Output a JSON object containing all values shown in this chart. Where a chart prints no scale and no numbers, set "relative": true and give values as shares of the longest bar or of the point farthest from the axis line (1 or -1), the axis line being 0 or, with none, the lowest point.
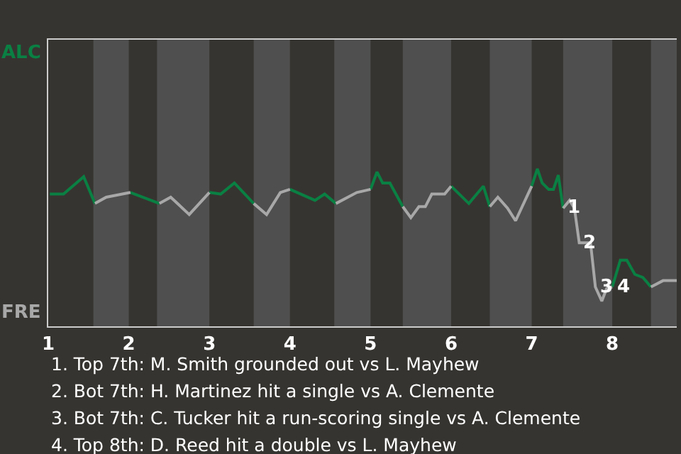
{
  "chart_data": {
    "type": "line",
    "relative": true,
    "ylim": [
      0,
      1.82
    ],
    "xlim": [
      1,
      8.8
    ],
    "xticks": [
      1,
      2,
      3,
      4,
      5,
      6,
      7,
      8
    ],
    "marker": "none",
    "line_style": "solid",
    "series": [
      {
        "color": "#0a8043",
        "x": [
          1.02,
          1.19,
          1.44,
          1.58,
          null,
          2.02,
          2.38,
          null,
          3.0,
          3.14,
          3.31,
          3.55,
          null,
          4.0,
          4.31,
          4.43,
          4.57,
          null,
          5.0,
          5.08,
          5.15,
          5.24,
          5.4,
          null,
          6.0,
          6.22,
          6.4,
          6.48,
          null,
          7.0,
          7.07,
          7.13,
          7.21,
          7.27,
          7.33,
          7.39,
          null,
          8.0,
          8.1,
          8.18,
          8.28,
          8.38,
          8.48
        ],
        "values": [
          0.84,
          0.84,
          0.95,
          0.78,
          null,
          0.85,
          0.78,
          null,
          0.85,
          0.84,
          0.91,
          0.78,
          null,
          0.87,
          0.8,
          0.84,
          0.78,
          null,
          0.87,
          0.98,
          0.91,
          0.91,
          0.76,
          null,
          0.89,
          0.78,
          0.89,
          0.76,
          null,
          0.89,
          1.0,
          0.91,
          0.87,
          0.87,
          0.96,
          0.75,
          null,
          0.25,
          0.42,
          0.42,
          0.33,
          0.31,
          0.25
        ]
      },
      {
        "color": "#a8a8a8",
        "x": [
          1.58,
          1.72,
          2.02,
          null,
          2.38,
          2.52,
          2.75,
          3.0,
          null,
          3.55,
          3.71,
          3.88,
          4.0,
          null,
          4.57,
          4.83,
          5.0,
          null,
          5.4,
          5.5,
          5.6,
          5.68,
          5.76,
          5.92,
          6.0,
          null,
          6.48,
          6.58,
          6.7,
          6.8,
          7.0,
          null,
          7.39,
          7.47,
          7.53,
          7.59,
          7.73,
          7.79,
          7.87,
          7.93,
          8.0,
          null,
          8.48,
          8.63,
          8.8
        ],
        "values": [
          0.78,
          0.82,
          0.85,
          null,
          0.78,
          0.82,
          0.71,
          0.85,
          null,
          0.78,
          0.71,
          0.85,
          0.87,
          null,
          0.78,
          0.85,
          0.87,
          null,
          0.76,
          0.69,
          0.76,
          0.76,
          0.84,
          0.84,
          0.89,
          null,
          0.76,
          0.82,
          0.75,
          0.67,
          0.89,
          null,
          0.75,
          0.8,
          0.75,
          0.53,
          0.53,
          0.25,
          0.16,
          0.24,
          0.25,
          null,
          0.25,
          0.29,
          0.29
        ]
      }
    ],
    "bands": [
      {
        "axis": "x",
        "from": 1.56,
        "to": 2.0,
        "color": "#4f4f4f"
      },
      {
        "axis": "x",
        "from": 2.35,
        "to": 3.0,
        "color": "#4f4f4f"
      },
      {
        "axis": "x",
        "from": 3.55,
        "to": 4.0,
        "color": "#4f4f4f"
      },
      {
        "axis": "x",
        "from": 4.55,
        "to": 5.0,
        "color": "#4f4f4f"
      },
      {
        "axis": "x",
        "from": 5.4,
        "to": 6.0,
        "color": "#4f4f4f"
      },
      {
        "axis": "x",
        "from": 6.48,
        "to": 7.0,
        "color": "#4f4f4f"
      },
      {
        "axis": "x",
        "from": 7.39,
        "to": 8.0,
        "color": "#4f4f4f"
      },
      {
        "axis": "x",
        "from": 8.48,
        "to": 8.8,
        "color": "#4f4f4f"
      }
    ],
    "annotations": [
      {
        "text": "1",
        "x": 7.39,
        "y": 0.75
      },
      {
        "text": "2",
        "x": 7.59,
        "y": 0.53
      },
      {
        "text": "3",
        "x": 7.79,
        "y": 0.25
      },
      {
        "text": "4",
        "x": 8.0,
        "y": 0.25
      },
      "ALC",
      "FRE",
      "1. Top 7th: M. Smith grounded out vs L. Mayhew",
      "2. Bot 7th: H. Martinez hit a single vs A. Clemente",
      "3. Bot 7th: C. Tucker hit a run-scoring single vs A. Clemente",
      "4. Top 8th: D. Reed hit a double vs L. Mayhew"
    ]
  }
}
